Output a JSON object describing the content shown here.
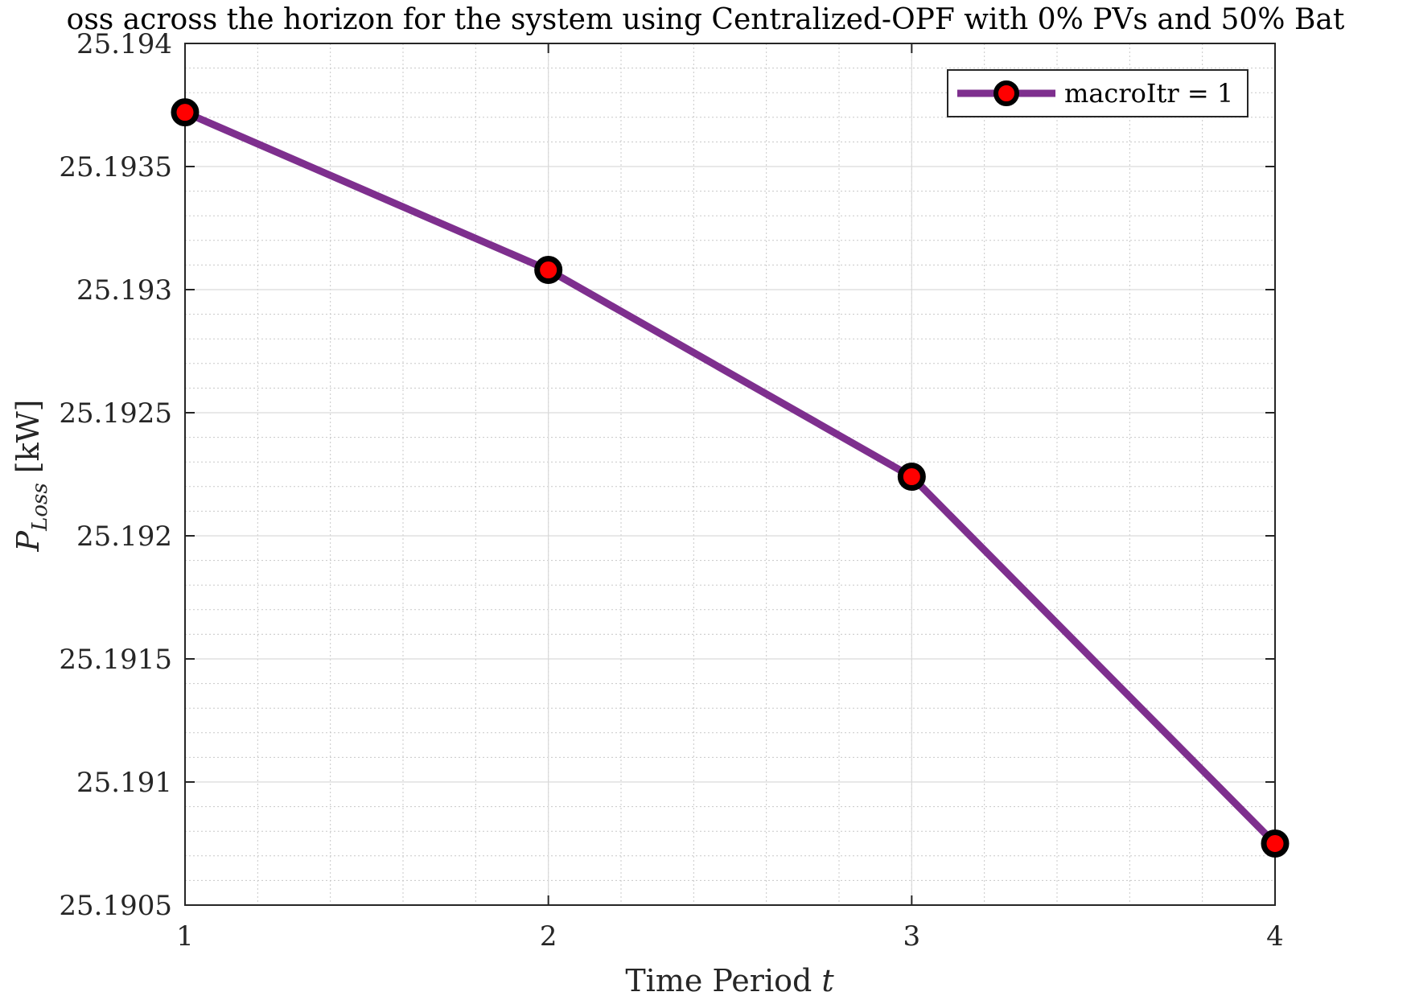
{
  "chart_data": {
    "type": "line",
    "title_visible": "oss across the horizon for the system using Centralized-OPF with 0% PVs and 50% Bat",
    "xlabel_main": "Time Period ",
    "xlabel_var": "t",
    "ylabel_main": "P",
    "ylabel_sub": "Loss",
    "ylabel_unit": " [kW]",
    "x": [
      1,
      2,
      3,
      4
    ],
    "xlim": [
      1,
      4
    ],
    "ylim": [
      25.1905,
      25.194
    ],
    "xticks": [
      1,
      2,
      3,
      4
    ],
    "xtick_labels": [
      "1",
      "2",
      "3",
      "4"
    ],
    "yticks": [
      25.1905,
      25.191,
      25.1915,
      25.192,
      25.1925,
      25.193,
      25.1935,
      25.194
    ],
    "ytick_labels": [
      "25.1905",
      "25.191",
      "25.1915",
      "25.192",
      "25.1925",
      "25.193",
      "25.1935",
      "25.194"
    ],
    "grid": true,
    "minor_grid": true,
    "legend_position": "top-right",
    "series": [
      {
        "name": "macroItr = 1",
        "values": [
          25.19372,
          25.19308,
          25.19224,
          25.19075
        ],
        "line_color": "#7e2f8e",
        "marker_face": "#ff0000",
        "marker_edge": "#000000"
      }
    ]
  }
}
